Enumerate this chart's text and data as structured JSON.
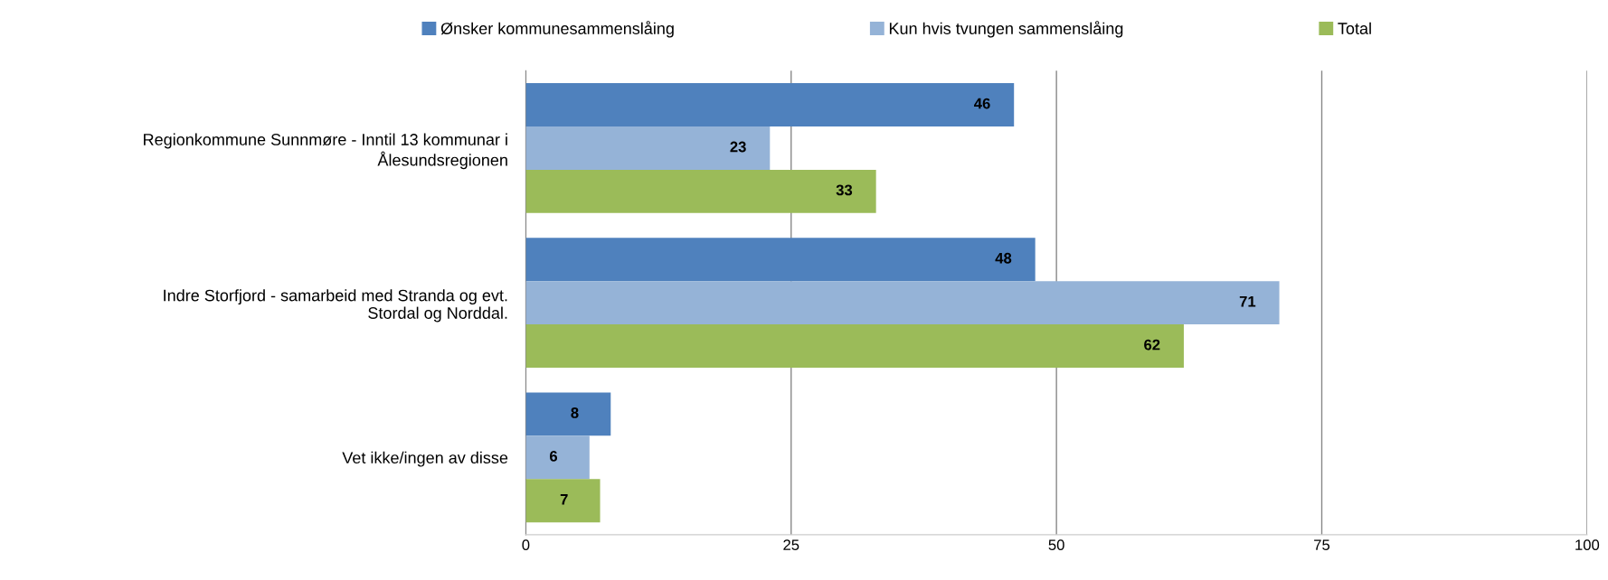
{
  "chart_data": {
    "type": "bar",
    "orientation": "horizontal",
    "categories": [
      "Regionkommune Sunnmøre - Inntil 13 kommunar i Ålesundsregionen",
      "Indre Storfjord - samarbeid med Stranda og evt. Stordal og Norddal.",
      "Vet ikke/ingen av disse"
    ],
    "series": [
      {
        "name": "Ønsker kommunesammenslåing",
        "color": "#4f81bd",
        "values": [
          46,
          48,
          8
        ]
      },
      {
        "name": "Kun hvis tvungen sammenslåing",
        "color": "#95b3d7",
        "values": [
          23,
          71,
          6
        ]
      },
      {
        "name": "Total",
        "color": "#9bbb59",
        "values": [
          33,
          62,
          7
        ]
      }
    ],
    "xlim": [
      0,
      100
    ],
    "xticks": [
      0,
      25,
      50,
      75,
      100
    ],
    "grid": "x",
    "legend": "top",
    "data_labels": true
  }
}
